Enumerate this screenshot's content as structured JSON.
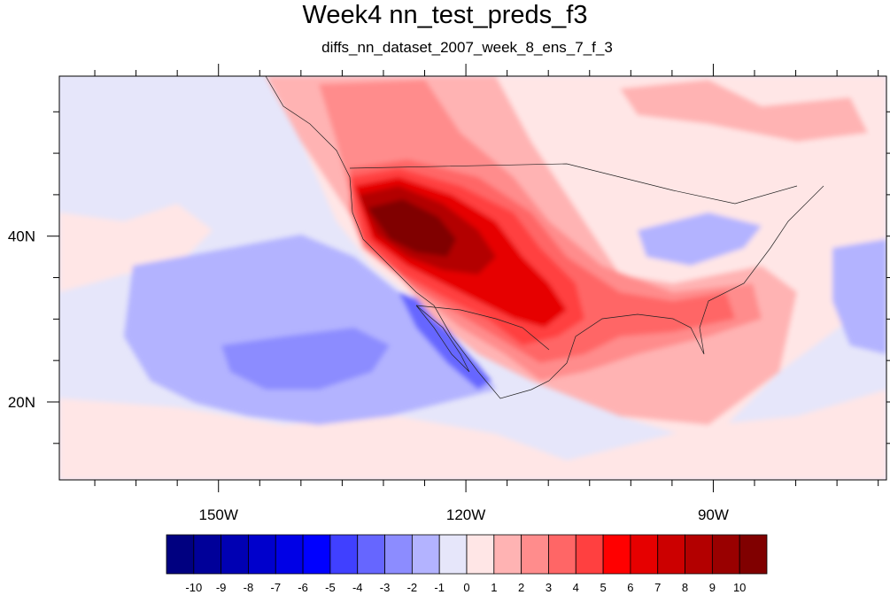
{
  "title": "Week4 nn_test_preds_f3",
  "subtitle": "diffs_nn_dataset_2007_week_8_ens_7_f_3",
  "map": {
    "lon_min": -169.3,
    "lon_max": -69.0,
    "lat_min": 10.6,
    "lat_max": 59.3,
    "lon_ticks": [
      -150,
      -120,
      -90
    ],
    "lon_tick_labels": [
      "150W",
      "120W",
      "90W"
    ],
    "lat_ticks": [
      20,
      40
    ],
    "lat_tick_labels": [
      "20N",
      "40N"
    ]
  },
  "colorbar": {
    "colors": [
      "#000080",
      "#000099",
      "#0000b3",
      "#0000cc",
      "#0000e6",
      "#0000ff",
      "#4040ff",
      "#6666ff",
      "#8c8cff",
      "#b3b3ff",
      "#e6e6fa",
      "#ffe6e6",
      "#ffb3b3",
      "#ff8c8c",
      "#ff6666",
      "#ff4040",
      "#ff0000",
      "#e60000",
      "#cc0000",
      "#b30000",
      "#990000",
      "#800000"
    ],
    "labels": [
      "-10",
      "-9",
      "-8",
      "-7",
      "-6",
      "-5",
      "-4",
      "-3",
      "-2",
      "-1",
      "0",
      "1",
      "2",
      "3",
      "4",
      "5",
      "6",
      "7",
      "8",
      "9",
      "10"
    ]
  }
}
